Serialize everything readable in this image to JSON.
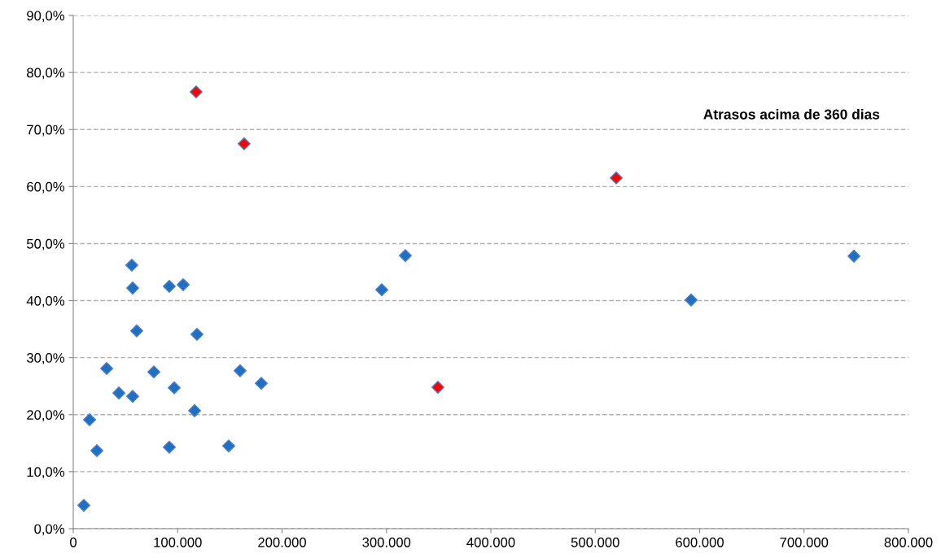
{
  "chart_data": {
    "type": "scatter",
    "marker": "diamond",
    "grid": "y",
    "legend": false,
    "annotations": [
      "Atrasos acima de 360 dias"
    ],
    "series": [
      {
        "color": "#1f6fc5",
        "x": [
          10100,
          15600,
          22600,
          32000,
          43700,
          56900,
          56100,
          56900,
          60800,
          77200,
          92000,
          92000,
          96700,
          105300,
          116200,
          118500,
          148900,
          159800,
          180100,
          295500,
          318100,
          591800,
          747800
        ],
        "values": [
          4.1,
          19.1,
          13.7,
          28.1,
          23.8,
          23.2,
          46.2,
          42.2,
          34.7,
          27.5,
          14.3,
          42.5,
          24.7,
          42.8,
          20.7,
          34.1,
          14.5,
          27.7,
          25.5,
          41.9,
          47.9,
          40.1,
          47.8
        ]
      },
      {
        "color": "#ff0000",
        "x": [
          117700,
          163700,
          520100,
          349300
        ],
        "values": [
          76.6,
          67.5,
          61.5,
          24.8
        ]
      }
    ],
    "xlim": [
      0,
      800000
    ],
    "xticks": [
      {
        "value": 0,
        "label": "0"
      },
      {
        "value": 100000,
        "label": "100.000"
      },
      {
        "value": 200000,
        "label": "200.000"
      },
      {
        "value": 300000,
        "label": "300.000"
      },
      {
        "value": 400000,
        "label": "400.000"
      },
      {
        "value": 500000,
        "label": "500.000"
      },
      {
        "value": 600000,
        "label": "600.000"
      },
      {
        "value": 700000,
        "label": "700.000"
      },
      {
        "value": 800000,
        "label": "800.000"
      }
    ],
    "ylim": [
      0,
      90
    ],
    "yticks": [
      {
        "value": 0,
        "label": "0,0%"
      },
      {
        "value": 10,
        "label": "10,0%"
      },
      {
        "value": 20,
        "label": "20,0%"
      },
      {
        "value": 30,
        "label": "30,0%"
      },
      {
        "value": 40,
        "label": "40,0%"
      },
      {
        "value": 50,
        "label": "50,0%"
      },
      {
        "value": 60,
        "label": "60,0%"
      },
      {
        "value": 70,
        "label": "70,0%"
      },
      {
        "value": 80,
        "label": "80,0%"
      },
      {
        "value": 90,
        "label": "90,0%"
      }
    ]
  }
}
